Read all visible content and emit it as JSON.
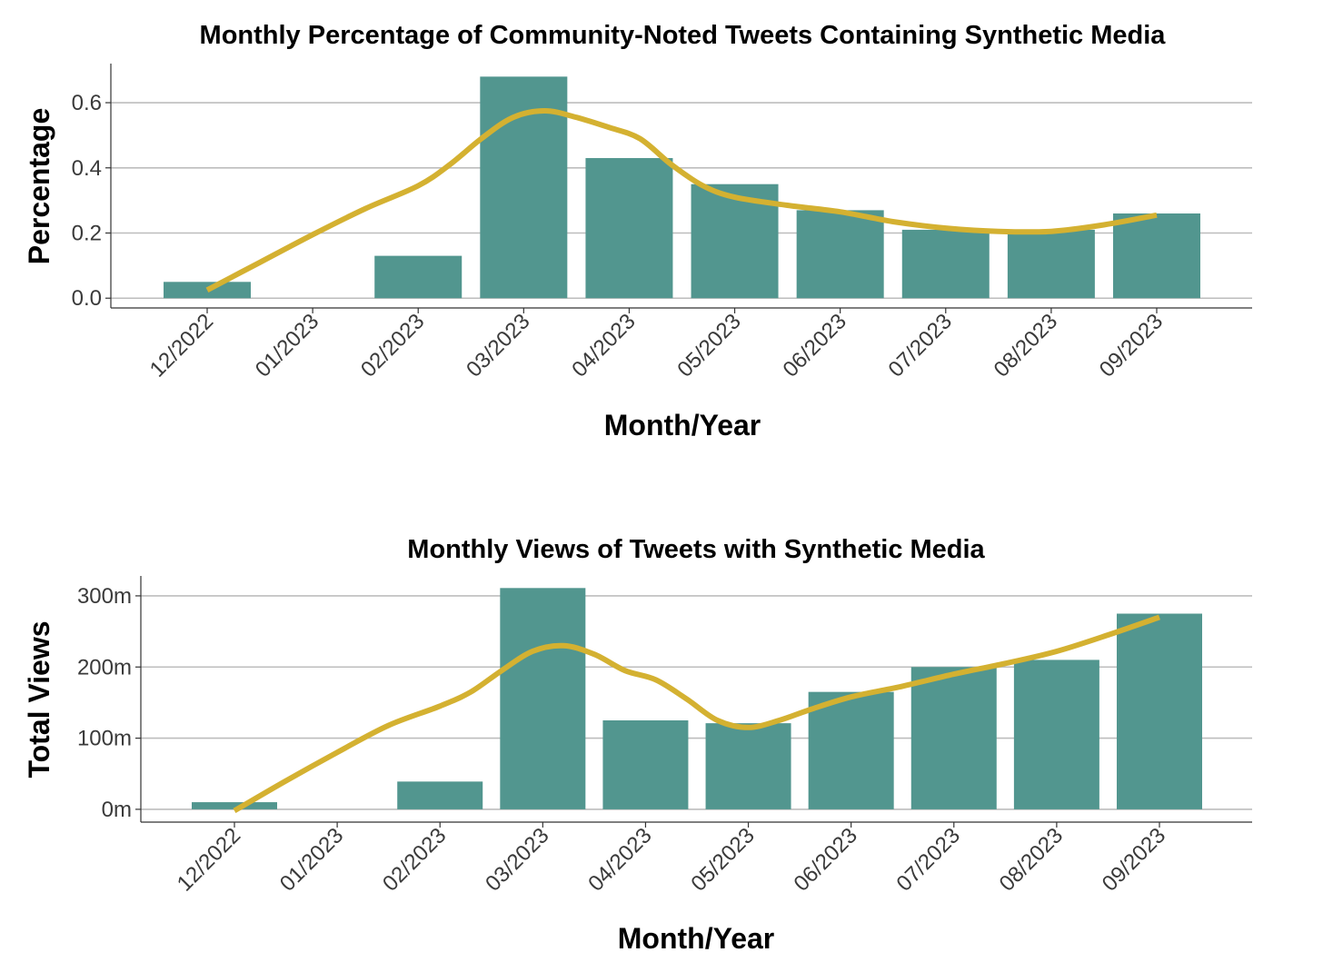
{
  "chart_data": [
    {
      "type": "bar",
      "title": "Monthly Percentage of Community-Noted Tweets Containing Synthetic Media",
      "xlabel": "Month/Year",
      "ylabel": "Percentage",
      "categories": [
        "12/2022",
        "01/2023",
        "02/2023",
        "03/2023",
        "04/2023",
        "05/2023",
        "06/2023",
        "07/2023",
        "08/2023",
        "09/2023"
      ],
      "values": [
        0.05,
        null,
        0.13,
        0.68,
        0.43,
        0.35,
        0.27,
        0.21,
        0.21,
        0.26
      ],
      "ylim": [
        -0.03,
        0.72
      ],
      "yticks": [
        0.0,
        0.2,
        0.4,
        0.6
      ],
      "ytick_labels": [
        "0.0",
        "0.2",
        "0.4",
        "0.6"
      ],
      "grid": "horizontal",
      "bar_color": "#52968f",
      "trend_line": {
        "color": "#d4b131",
        "x_start": "12/2022",
        "x_end": "09/2023",
        "points": [
          [
            0.0,
            0.025
          ],
          [
            0.5,
            0.11
          ],
          [
            1.0,
            0.195
          ],
          [
            1.5,
            0.275
          ],
          [
            2.0,
            0.345
          ],
          [
            2.3,
            0.41
          ],
          [
            2.6,
            0.49
          ],
          [
            2.9,
            0.555
          ],
          [
            3.2,
            0.575
          ],
          [
            3.5,
            0.555
          ],
          [
            3.8,
            0.525
          ],
          [
            4.1,
            0.49
          ],
          [
            4.4,
            0.41
          ],
          [
            4.7,
            0.345
          ],
          [
            5.0,
            0.31
          ],
          [
            5.5,
            0.285
          ],
          [
            6.0,
            0.265
          ],
          [
            6.5,
            0.235
          ],
          [
            7.0,
            0.215
          ],
          [
            7.5,
            0.205
          ],
          [
            8.0,
            0.205
          ],
          [
            8.5,
            0.225
          ],
          [
            9.0,
            0.255
          ]
        ]
      }
    },
    {
      "type": "bar",
      "title": "Monthly Views of Tweets with Synthetic Media",
      "xlabel": "Month/Year",
      "ylabel": "Total Views",
      "categories": [
        "12/2022",
        "01/2023",
        "02/2023",
        "03/2023",
        "04/2023",
        "05/2023",
        "06/2023",
        "07/2023",
        "08/2023",
        "09/2023"
      ],
      "values": [
        10,
        null,
        39,
        311,
        125,
        121,
        165,
        200,
        210,
        275
      ],
      "value_unit": "m",
      "ylim": [
        -18,
        328
      ],
      "yticks": [
        0,
        100,
        200,
        300
      ],
      "ytick_labels": [
        "0m",
        "100m",
        "200m",
        "300m"
      ],
      "grid": "horizontal",
      "bar_color": "#52968f",
      "trend_line": {
        "color": "#d4b131",
        "x_start": "12/2022",
        "x_end": "09/2023",
        "points": [
          [
            0.0,
            -2
          ],
          [
            0.5,
            40
          ],
          [
            1.0,
            80
          ],
          [
            1.5,
            118
          ],
          [
            2.0,
            145
          ],
          [
            2.3,
            165
          ],
          [
            2.6,
            195
          ],
          [
            2.9,
            222
          ],
          [
            3.2,
            230
          ],
          [
            3.5,
            218
          ],
          [
            3.8,
            195
          ],
          [
            4.1,
            182
          ],
          [
            4.4,
            155
          ],
          [
            4.7,
            125
          ],
          [
            5.0,
            115
          ],
          [
            5.3,
            125
          ],
          [
            5.6,
            140
          ],
          [
            6.0,
            158
          ],
          [
            6.5,
            173
          ],
          [
            7.0,
            190
          ],
          [
            7.5,
            205
          ],
          [
            8.0,
            222
          ],
          [
            8.5,
            245
          ],
          [
            9.0,
            270
          ]
        ]
      }
    }
  ]
}
